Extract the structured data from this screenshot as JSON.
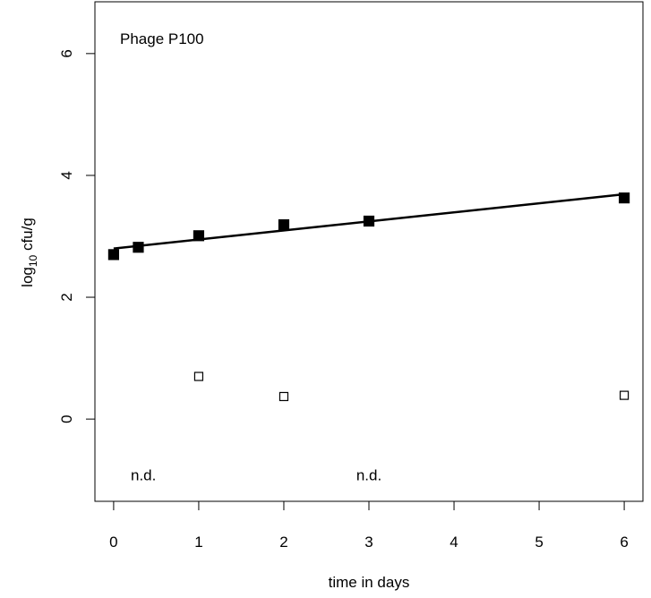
{
  "chart_data": {
    "type": "scatter",
    "title": "",
    "panel_label": "Phage P100",
    "xlabel": "time in days",
    "ylabel_main": "log",
    "ylabel_sub": "10",
    "ylabel_rest": " cfu/g",
    "xlim": [
      -0.22,
      6.22
    ],
    "ylim": [
      -1.35,
      6.85
    ],
    "xticks": [
      0,
      1,
      2,
      3,
      4,
      5,
      6
    ],
    "xtick_labels": [
      "0",
      "1",
      "2",
      "3",
      "4",
      "5",
      "6"
    ],
    "yticks": [
      0,
      2,
      4,
      6
    ],
    "ytick_labels": [
      "0",
      "2",
      "4",
      "6"
    ],
    "grid": false,
    "legend": "none",
    "series": [
      {
        "marker": "filled-square",
        "color": "#000000",
        "points": [
          {
            "x": 0,
            "y": 2.7
          },
          {
            "x": 0.29,
            "y": 2.82
          },
          {
            "x": 1,
            "y": 3.01
          },
          {
            "x": 2,
            "y": 3.19
          },
          {
            "x": 3,
            "y": 3.25
          },
          {
            "x": 6,
            "y": 3.63
          }
        ]
      },
      {
        "marker": "open-square",
        "color": "#000000",
        "points": [
          {
            "x": 1,
            "y": 0.7
          },
          {
            "x": 2,
            "y": 0.37
          },
          {
            "x": 6,
            "y": 0.39
          }
        ]
      }
    ],
    "regression_line": {
      "x": [
        0,
        6
      ],
      "y": [
        2.8,
        3.69
      ],
      "color": "#000000"
    },
    "annotations": [
      {
        "text": "n.d.",
        "x": 0.35,
        "y": -0.92
      },
      {
        "text": "n.d.",
        "x": 3.0,
        "y": -0.92
      }
    ]
  }
}
